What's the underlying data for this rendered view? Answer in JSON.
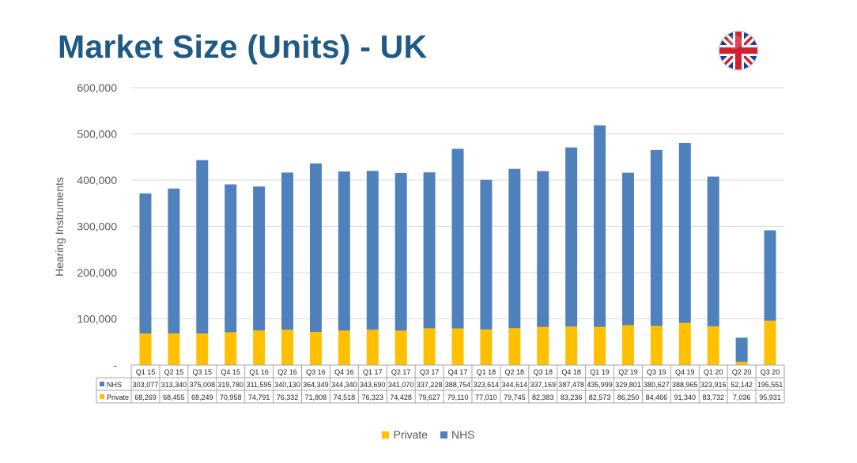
{
  "page": {
    "title": "Market Size (Units) - UK"
  },
  "flag_icon": "uk-flag-icon",
  "colors": {
    "private": "#ffc000",
    "nhs": "#4f81bd",
    "title": "#1f5a85"
  },
  "chart_data": {
    "type": "bar",
    "stacked": true,
    "title": "",
    "xlabel": "",
    "ylabel": "Hearing Instruments",
    "ylim": [
      0,
      600000
    ],
    "yticks": [
      "-",
      "100,000",
      "200,000",
      "300,000",
      "400,000",
      "500,000",
      "600,000"
    ],
    "grid": true,
    "legend_position": "bottom",
    "categories": [
      "Q1 15",
      "Q2 15",
      "Q3 15",
      "Q4 15",
      "Q1 16",
      "Q2 16",
      "Q3 16",
      "Q4 16",
      "Q1 17",
      "Q2 17",
      "Q3 17",
      "Q4 17",
      "Q1 18",
      "Q2 18",
      "Q3 18",
      "Q4 18",
      "Q1 19",
      "Q2 19",
      "Q3 19",
      "Q4 19",
      "Q1 20",
      "Q2 20",
      "Q3 20"
    ],
    "series": [
      {
        "name": "NHS",
        "color": "#4f81bd",
        "values": [
          303077,
          313340,
          375008,
          319780,
          311595,
          340130,
          364349,
          344340,
          343690,
          341070,
          337228,
          388754,
          323614,
          344614,
          337169,
          387478,
          435999,
          329801,
          380627,
          388965,
          323916,
          52142,
          195551
        ],
        "labels": [
          "303,077",
          "313,340",
          "375,008",
          "319,780",
          "311,595",
          "340,130",
          "364,349",
          "344,340",
          "343,690",
          "341,070",
          "337,228",
          "388,754",
          "323,614",
          "344,614",
          "337,169",
          "387,478",
          "435,999",
          "329,801",
          "380,627",
          "388,965",
          "323,916",
          "52,142",
          "195,551"
        ]
      },
      {
        "name": "Private",
        "color": "#ffc000",
        "values": [
          68269,
          68455,
          68249,
          70958,
          74791,
          76332,
          71808,
          74518,
          76323,
          74428,
          79627,
          79110,
          77010,
          79745,
          82383,
          83236,
          82573,
          86250,
          84466,
          91340,
          83732,
          7036,
          95931
        ],
        "labels": [
          "68,269",
          "68,455",
          "68,249",
          "70,958",
          "74,791",
          "76,332",
          "71,808",
          "74,518",
          "76,323",
          "74,428",
          "79,627",
          "79,110",
          "77,010",
          "79,745",
          "82,383",
          "83,236",
          "82,573",
          "86,250",
          "84,466",
          "91,340",
          "83,732",
          "7,036",
          "95,931"
        ]
      }
    ],
    "legend": [
      "Private",
      "NHS"
    ]
  }
}
